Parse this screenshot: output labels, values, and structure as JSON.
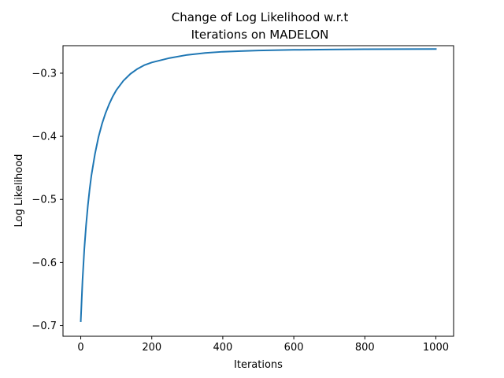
{
  "chart_data": {
    "type": "line",
    "title_lines": [
      "Change of Log Likelihood w.r.t",
      "Iterations on MADELON"
    ],
    "xlabel": "Iterations",
    "ylabel": "Log Likelihood",
    "xlim": [
      -50,
      1050
    ],
    "ylim": [
      -0.7168,
      -0.2564
    ],
    "x_ticks": [
      0,
      200,
      400,
      600,
      800,
      1000
    ],
    "x_tick_labels": [
      "0",
      "200",
      "400",
      "600",
      "800",
      "1000"
    ],
    "y_ticks": [
      -0.7,
      -0.6,
      -0.5,
      -0.4,
      -0.3
    ],
    "y_tick_labels": [
      "−0.7",
      "−0.6",
      "−0.5",
      "−0.4",
      "−0.3"
    ],
    "grid": false,
    "legend": "none",
    "series": [
      {
        "color": "#1f77b4",
        "x": [
          0,
          5,
          10,
          15,
          20,
          25,
          30,
          40,
          50,
          60,
          70,
          80,
          90,
          100,
          120,
          140,
          160,
          180,
          200,
          250,
          300,
          350,
          400,
          450,
          500,
          600,
          700,
          800,
          900,
          1000
        ],
        "y": [
          -0.693,
          -0.628,
          -0.579,
          -0.541,
          -0.51,
          -0.484,
          -0.462,
          -0.428,
          -0.401,
          -0.38,
          -0.363,
          -0.349,
          -0.337,
          -0.327,
          -0.312,
          -0.301,
          -0.293,
          -0.287,
          -0.283,
          -0.276,
          -0.271,
          -0.268,
          -0.266,
          -0.265,
          -0.264,
          -0.263,
          -0.2625,
          -0.262,
          -0.2618,
          -0.2617
        ]
      }
    ]
  }
}
